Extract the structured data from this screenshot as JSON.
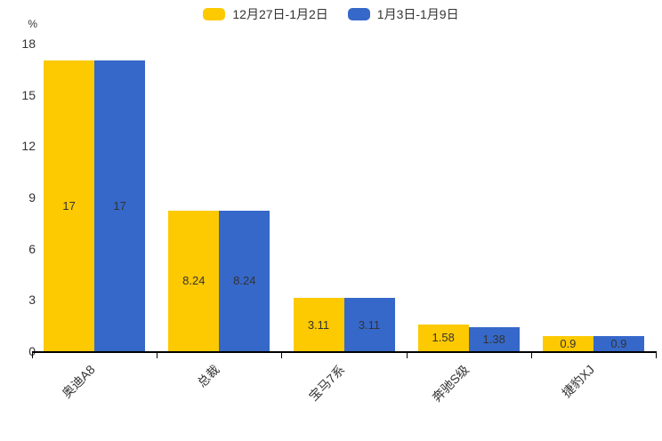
{
  "chart_data": {
    "type": "bar",
    "title": "",
    "unit_label": "%",
    "categories": [
      "奥迪A8",
      "总裁",
      "宝马7系",
      "奔驰S级",
      "捷豹XJ"
    ],
    "series": [
      {
        "name": "12月27日-1月2日",
        "color": "#FDC901",
        "values": [
          17,
          8.24,
          3.11,
          1.58,
          0.9
        ]
      },
      {
        "name": "1月3日-1月9日",
        "color": "#3668C9",
        "values": [
          17,
          8.24,
          3.11,
          1.38,
          0.9
        ]
      }
    ],
    "y_ticks": [
      0,
      3,
      6,
      9,
      12,
      15,
      18
    ],
    "ylim": [
      0,
      18
    ],
    "xlabel": "",
    "ylabel": "%",
    "legend_position": "top",
    "grid": false,
    "value_labels_inside_bars": true,
    "x_label_rotation_deg": 45,
    "colors": {
      "text": "#333333",
      "axis": "#000000",
      "background": "#FFFFFF"
    }
  }
}
